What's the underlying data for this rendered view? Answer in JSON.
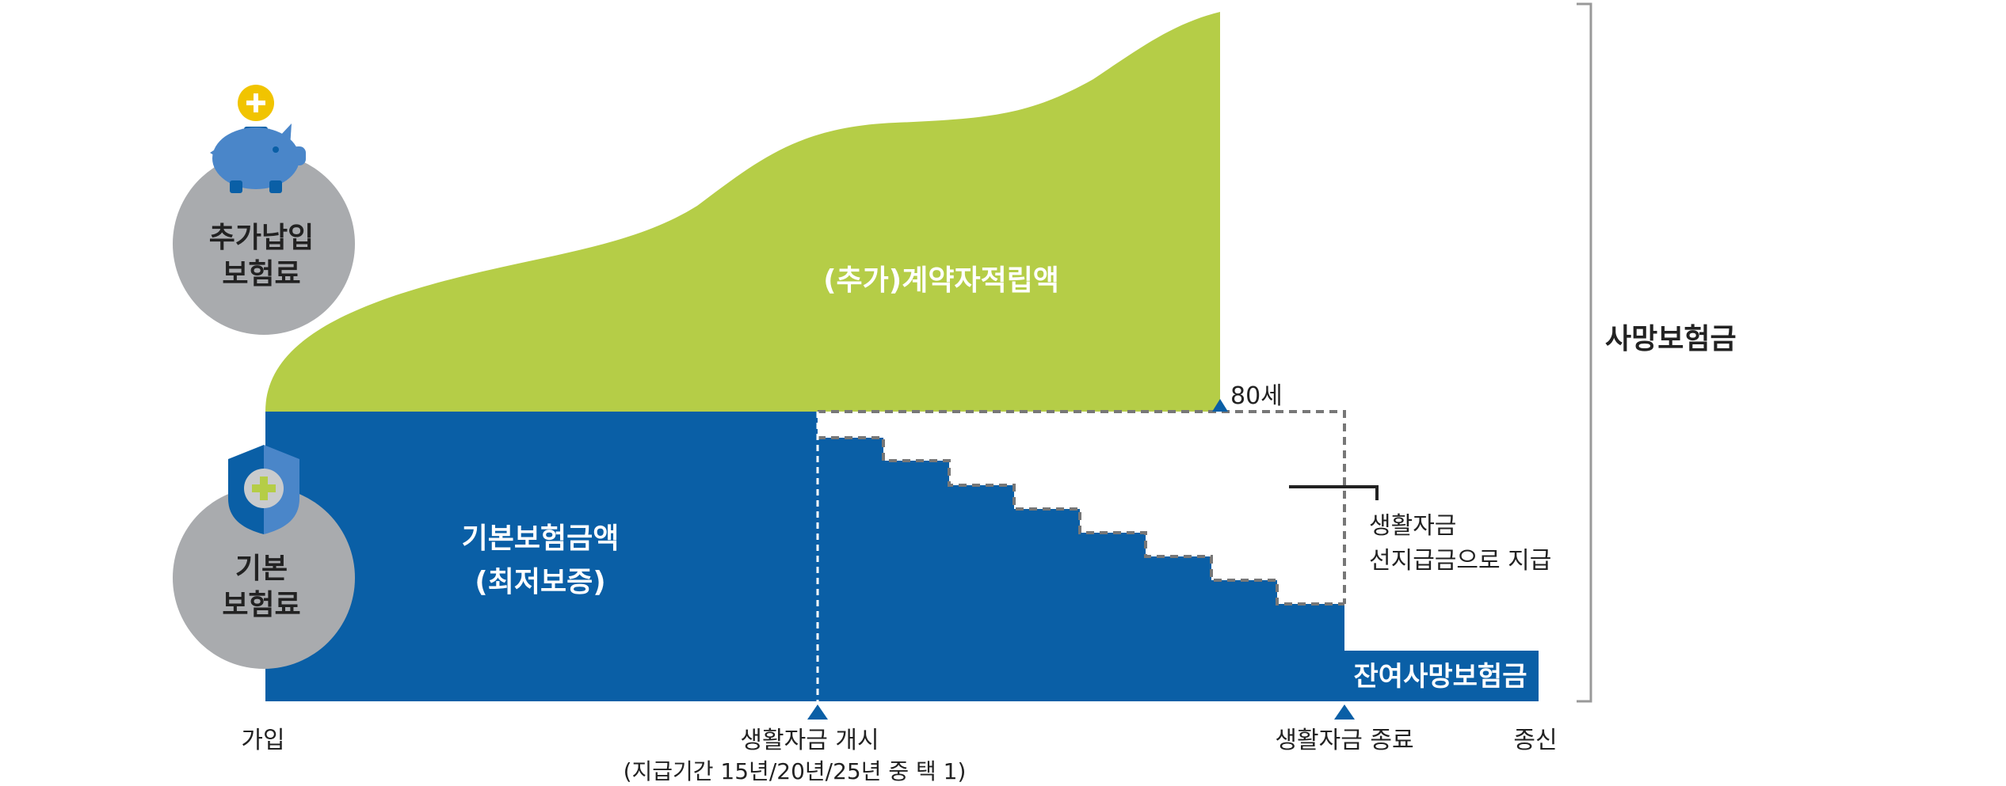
{
  "colors": {
    "green": "#b5cd47",
    "blue": "#0a5fa6",
    "blue_light": "#4a86c9",
    "gray_circle": "#a9abae",
    "yellow": "#f1c400",
    "dark": "#222222",
    "dash": "#777777",
    "bracket": "#999999"
  },
  "icons": {
    "piggy": "piggy-bank-icon",
    "shield": "shield-plus-icon",
    "coin": "coin-plus-icon"
  },
  "circles": {
    "additional": {
      "line1": "추가납입",
      "line2": "보험료"
    },
    "basic": {
      "line1": "기본",
      "line2": "보험료"
    }
  },
  "areas": {
    "accumulated": "(추가)계약자적립액",
    "basic_line1": "기본보험금액",
    "basic_line2": "(최저보증)",
    "residual": "잔여사망보험금"
  },
  "markers": {
    "age80": "80세",
    "start_line1": "생활자금 개시",
    "start_line2": "(지급기간 15년/20년/25년 중 택 1)",
    "end": "생활자금 종료"
  },
  "axis": {
    "join": "가입",
    "lifetime": "종신"
  },
  "callout": {
    "line1": "생활자금",
    "line2": "선지급금으로 지급"
  },
  "bracket_label": "사망보험금"
}
